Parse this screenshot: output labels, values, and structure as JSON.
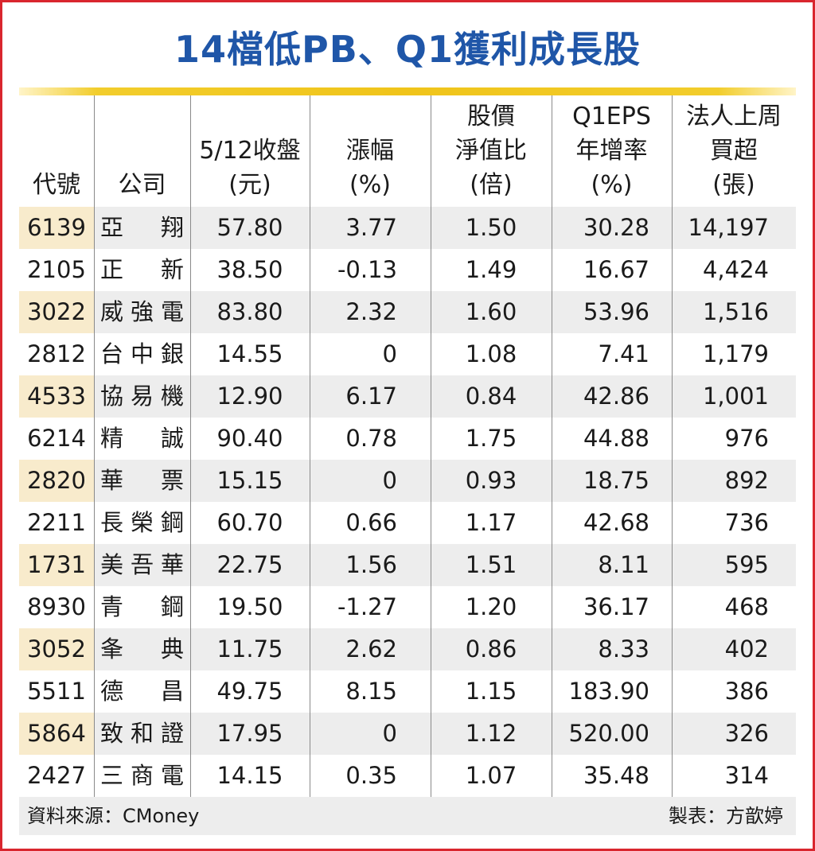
{
  "title": "14檔低PB、Q1獲利成長股",
  "headers": [
    {
      "lines": [
        "代號"
      ]
    },
    {
      "lines": [
        "公司"
      ]
    },
    {
      "lines": [
        "5/12收盤",
        "(元)"
      ]
    },
    {
      "lines": [
        "漲幅",
        "(%)"
      ]
    },
    {
      "lines": [
        "股價",
        "淨值比",
        "(倍)"
      ]
    },
    {
      "lines": [
        "Q1EPS",
        "年增率",
        "(%)"
      ]
    },
    {
      "lines": [
        "法人上周",
        "買超",
        "(張)"
      ]
    }
  ],
  "rows": [
    {
      "code": "6139",
      "name": "亞翔",
      "close": "57.80",
      "change": "3.77",
      "pb": "1.50",
      "eps_growth": "30.28",
      "net_buy": "14,197"
    },
    {
      "code": "2105",
      "name": "正新",
      "close": "38.50",
      "change": "-0.13",
      "pb": "1.49",
      "eps_growth": "16.67",
      "net_buy": "4,424"
    },
    {
      "code": "3022",
      "name": "威強電",
      "close": "83.80",
      "change": "2.32",
      "pb": "1.60",
      "eps_growth": "53.96",
      "net_buy": "1,516"
    },
    {
      "code": "2812",
      "name": "台中銀",
      "close": "14.55",
      "change": "0",
      "pb": "1.08",
      "eps_growth": "7.41",
      "net_buy": "1,179"
    },
    {
      "code": "4533",
      "name": "協易機",
      "close": "12.90",
      "change": "6.17",
      "pb": "0.84",
      "eps_growth": "42.86",
      "net_buy": "1,001"
    },
    {
      "code": "6214",
      "name": "精誠",
      "close": "90.40",
      "change": "0.78",
      "pb": "1.75",
      "eps_growth": "44.88",
      "net_buy": "976"
    },
    {
      "code": "2820",
      "name": "華票",
      "close": "15.15",
      "change": "0",
      "pb": "0.93",
      "eps_growth": "18.75",
      "net_buy": "892"
    },
    {
      "code": "2211",
      "name": "長榮鋼",
      "close": "60.70",
      "change": "0.66",
      "pb": "1.17",
      "eps_growth": "42.68",
      "net_buy": "736"
    },
    {
      "code": "1731",
      "name": "美吾華",
      "close": "22.75",
      "change": "1.56",
      "pb": "1.51",
      "eps_growth": "8.11",
      "net_buy": "595"
    },
    {
      "code": "8930",
      "name": "青鋼",
      "close": "19.50",
      "change": "-1.27",
      "pb": "1.20",
      "eps_growth": "36.17",
      "net_buy": "468"
    },
    {
      "code": "3052",
      "name": "夆典",
      "close": "11.75",
      "change": "2.62",
      "pb": "0.86",
      "eps_growth": "8.33",
      "net_buy": "402"
    },
    {
      "code": "5511",
      "name": "德昌",
      "close": "49.75",
      "change": "8.15",
      "pb": "1.15",
      "eps_growth": "183.90",
      "net_buy": "386"
    },
    {
      "code": "5864",
      "name": "致和證",
      "close": "17.95",
      "change": "0",
      "pb": "1.12",
      "eps_growth": "520.00",
      "net_buy": "326"
    },
    {
      "code": "2427",
      "name": "三商電",
      "close": "14.15",
      "change": "0.35",
      "pb": "1.07",
      "eps_growth": "35.48",
      "net_buy": "314"
    }
  ],
  "footer": {
    "source": "資料來源：CMoney",
    "maker": "製表：方歆婷"
  }
}
